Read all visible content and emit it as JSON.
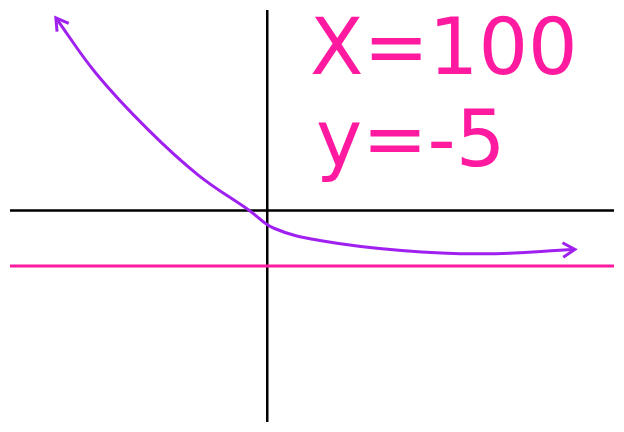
{
  "chart_data": {
    "type": "line",
    "annotations": [
      "X=100",
      "y=-5"
    ],
    "series": [
      {
        "color": "#a020f0",
        "x": [
          -18.9,
          -15.3,
          -10.7,
          -6.2,
          -1.6,
          0.6,
          4.7,
          12,
          19.3,
          27.5
        ],
        "values": [
          17.3,
          12.3,
          7.3,
          3.2,
          0,
          -1.6,
          -2.7,
          -3.6,
          -3.9,
          -3.5
        ]
      },
      {
        "color": "#ff1aa0",
        "x": [
          -23,
          31
        ],
        "values": [
          -5,
          -5
        ]
      }
    ],
    "xlim": [
      -23,
      31
    ],
    "ylim": [
      -19,
      18
    ],
    "xticks": [],
    "yticks": [],
    "tick_labels": false,
    "grid": false
  }
}
